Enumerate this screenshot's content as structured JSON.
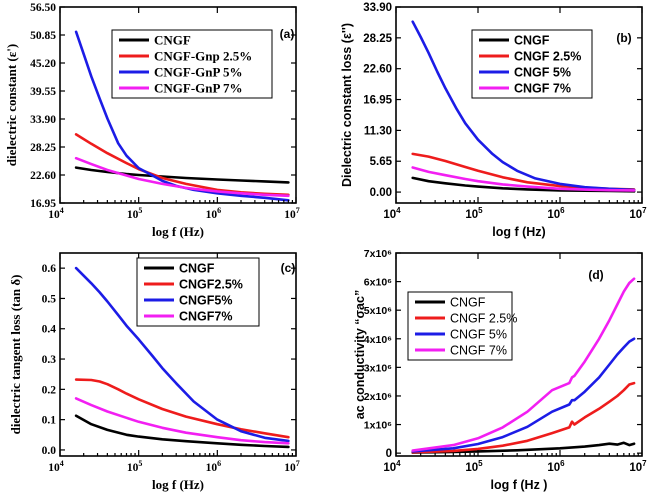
{
  "colors": {
    "black": "#000000",
    "red": "#ee1c1c",
    "blue": "#1c1ce6",
    "magenta": "#f21ff2"
  },
  "chart_data": [
    {
      "type": "line",
      "panel_label": "(a)",
      "xlabel": "log f (Hz)",
      "ylabel": "dielectric constant (ε')",
      "xscale": "log",
      "xlim": [
        10000,
        10000000
      ],
      "ylim": [
        16.95,
        56.5
      ],
      "xticks": [
        10000,
        100000,
        1000000,
        10000000
      ],
      "yticks": [
        16.95,
        22.6,
        28.25,
        33.9,
        39.55,
        45.2,
        50.85,
        56.5
      ],
      "ytick_labels": [
        "16.95",
        "22.60",
        "28.25",
        "33.90",
        "39.55",
        "45.20",
        "50.85",
        "56.50"
      ],
      "legend": [
        "CNGF",
        "CNGF-Gnp 2.5%",
        "CNGF-GnP 5%",
        "CNGF-GnP 7%"
      ],
      "series": [
        {
          "name": "CNGF",
          "color": "#000000",
          "x": [
            16000,
            25000,
            40000,
            70000,
            100000,
            200000,
            400000,
            1000000,
            2000000,
            4000000,
            8000000
          ],
          "y": [
            24.1,
            23.6,
            23.2,
            22.8,
            22.6,
            22.3,
            22.0,
            21.7,
            21.5,
            21.3,
            21.1
          ]
        },
        {
          "name": "CNGF-Gnp 2.5%",
          "color": "#ee1c1c",
          "x": [
            16000,
            25000,
            40000,
            70000,
            100000,
            200000,
            400000,
            1000000,
            2000000,
            4000000,
            8000000
          ],
          "y": [
            30.8,
            28.9,
            27.0,
            25.0,
            23.8,
            22.0,
            20.8,
            19.6,
            19.1,
            18.8,
            18.6
          ]
        },
        {
          "name": "CNGF-GnP 5%",
          "color": "#1c1ce6",
          "x": [
            16000,
            20000,
            25000,
            32000,
            40000,
            55000,
            70000,
            100000,
            150000,
            200000,
            300000,
            500000,
            1000000,
            2000000,
            4000000,
            8000000
          ],
          "y": [
            51.5,
            47.0,
            42.5,
            38.0,
            34.0,
            29.0,
            26.5,
            24.0,
            22.5,
            21.4,
            20.4,
            19.6,
            18.9,
            18.4,
            18.0,
            17.5
          ]
        },
        {
          "name": "CNGF-GnP 7%",
          "color": "#f21ff2",
          "x": [
            16000,
            25000,
            40000,
            70000,
            100000,
            200000,
            400000,
            1000000,
            2000000,
            4000000,
            8000000
          ],
          "y": [
            26.0,
            24.8,
            23.6,
            22.5,
            21.8,
            20.8,
            20.0,
            19.3,
            18.9,
            18.6,
            18.4
          ]
        }
      ]
    },
    {
      "type": "line",
      "panel_label": "(b)",
      "xlabel": "log f (Hz)",
      "ylabel": "Dielectric constant loss  (ε'')",
      "xscale": "log",
      "xlim": [
        10000,
        10000000
      ],
      "ylim": [
        -2.0,
        33.9
      ],
      "xticks": [
        10000,
        100000,
        1000000,
        10000000
      ],
      "yticks": [
        0.0,
        5.65,
        11.3,
        16.95,
        22.6,
        28.25,
        33.9
      ],
      "ytick_labels": [
        "0.00",
        "5.65",
        "11.30",
        "16.95",
        "22.60",
        "28.25",
        "33.90"
      ],
      "legend": [
        "CNGF",
        "CNGF 2.5%",
        "CNGF 5%",
        "CNGF 7%"
      ],
      "series": [
        {
          "name": "CNGF",
          "color": "#000000",
          "x": [
            16000,
            25000,
            40000,
            70000,
            100000,
            200000,
            400000,
            1000000,
            2000000,
            4000000,
            8000000
          ],
          "y": [
            2.6,
            2.0,
            1.6,
            1.2,
            1.0,
            0.7,
            0.5,
            0.3,
            0.25,
            0.2,
            0.15
          ]
        },
        {
          "name": "CNGF 2.5%",
          "color": "#ee1c1c",
          "x": [
            16000,
            25000,
            40000,
            70000,
            100000,
            200000,
            400000,
            1000000,
            2000000,
            4000000,
            8000000
          ],
          "y": [
            7.0,
            6.5,
            5.7,
            4.6,
            3.9,
            2.7,
            1.8,
            1.1,
            0.8,
            0.6,
            0.5
          ]
        },
        {
          "name": "CNGF 5%",
          "color": "#1c1ce6",
          "x": [
            16000,
            20000,
            25000,
            32000,
            40000,
            55000,
            70000,
            100000,
            150000,
            200000,
            300000,
            500000,
            1000000,
            2000000,
            4000000,
            8000000
          ],
          "y": [
            31.2,
            28.4,
            25.5,
            22.0,
            19.0,
            15.2,
            12.6,
            9.6,
            7.0,
            5.5,
            3.9,
            2.5,
            1.5,
            0.9,
            0.6,
            0.4
          ]
        },
        {
          "name": "CNGF 7%",
          "color": "#f21ff2",
          "x": [
            16000,
            25000,
            40000,
            70000,
            100000,
            200000,
            400000,
            1000000,
            2000000,
            4000000,
            8000000
          ],
          "y": [
            4.5,
            3.7,
            3.1,
            2.4,
            2.0,
            1.4,
            1.0,
            0.6,
            0.45,
            0.35,
            0.3
          ]
        }
      ]
    },
    {
      "type": "line",
      "panel_label": "(c)",
      "xlabel": "log f (Hz)",
      "ylabel": "dielectric tangent loss (tan δ)",
      "xscale": "log",
      "xlim": [
        10000,
        10000000
      ],
      "ylim": [
        -0.02,
        0.65
      ],
      "xticks": [
        10000,
        100000,
        1000000,
        10000000
      ],
      "yticks": [
        0.0,
        0.1,
        0.2,
        0.3,
        0.4,
        0.5,
        0.6
      ],
      "ytick_labels": [
        "0.0",
        "0.1",
        "0.2",
        "0.3",
        "0.4",
        "0.5",
        "0.6"
      ],
      "legend": [
        "CNGF",
        "CNGF2.5%",
        "CNGF5%",
        "CNGF7%"
      ],
      "series": [
        {
          "name": "CNGF",
          "color": "#000000",
          "x": [
            16000,
            25000,
            40000,
            70000,
            100000,
            200000,
            400000,
            1000000,
            2000000,
            4000000,
            8000000
          ],
          "y": [
            0.113,
            0.085,
            0.066,
            0.05,
            0.044,
            0.035,
            0.029,
            0.022,
            0.017,
            0.013,
            0.01
          ]
        },
        {
          "name": "CNGF2.5%",
          "color": "#ee1c1c",
          "x": [
            16000,
            25000,
            32000,
            40000,
            55000,
            70000,
            100000,
            200000,
            400000,
            1000000,
            2000000,
            4000000,
            8000000
          ],
          "y": [
            0.232,
            0.231,
            0.226,
            0.217,
            0.2,
            0.186,
            0.167,
            0.135,
            0.11,
            0.085,
            0.068,
            0.055,
            0.042
          ]
        },
        {
          "name": "CNGF5%",
          "color": "#1c1ce6",
          "x": [
            16000,
            20000,
            25000,
            32000,
            40000,
            55000,
            70000,
            100000,
            150000,
            200000,
            300000,
            500000,
            1000000,
            2000000,
            4000000,
            8000000
          ],
          "y": [
            0.6,
            0.575,
            0.55,
            0.52,
            0.49,
            0.445,
            0.41,
            0.365,
            0.31,
            0.27,
            0.22,
            0.16,
            0.1,
            0.062,
            0.04,
            0.03
          ]
        },
        {
          "name": "CNGF7%",
          "color": "#f21ff2",
          "x": [
            16000,
            25000,
            40000,
            70000,
            100000,
            200000,
            400000,
            1000000,
            2000000,
            4000000,
            8000000
          ],
          "y": [
            0.17,
            0.148,
            0.127,
            0.106,
            0.093,
            0.073,
            0.057,
            0.042,
            0.032,
            0.026,
            0.022
          ]
        }
      ]
    },
    {
      "type": "line",
      "panel_label": "(d)",
      "xlabel": "log f (Hz )",
      "ylabel": "ac conductivity “σac”",
      "xscale": "log",
      "xlim": [
        10000,
        10000000
      ],
      "ylim": [
        -100000,
        7000000
      ],
      "xticks": [
        10000,
        100000,
        1000000,
        10000000
      ],
      "yticks": [
        0,
        1000000,
        2000000,
        3000000,
        4000000,
        5000000,
        6000000,
        7000000
      ],
      "ytick_labels": [
        "0",
        "1x10⁶",
        "2x10⁶",
        "3x10⁶",
        "4x10⁶",
        "5x10⁶",
        "6x10⁶",
        "7x10⁶"
      ],
      "legend": [
        "CNGF",
        "CNGF 2.5%",
        "CNGF 5%",
        "CNGF 7%"
      ],
      "series": [
        {
          "name": "CNGF",
          "color": "#000000",
          "x": [
            16000,
            50000,
            100000,
            300000,
            1000000,
            2000000,
            3000000,
            4000000,
            5000000,
            6000000,
            7000000,
            8000000
          ],
          "y": [
            20000,
            40000,
            60000,
            100000,
            170000,
            230000,
            280000,
            330000,
            300000,
            360000,
            280000,
            330000
          ]
        },
        {
          "name": "CNGF 2.5%",
          "color": "#ee1c1c",
          "x": [
            16000,
            50000,
            100000,
            200000,
            400000,
            800000,
            1300000,
            1400000,
            1500000,
            2000000,
            3000000,
            4000000,
            5000000,
            6000000,
            7000000,
            8000000
          ],
          "y": [
            30000,
            80000,
            150000,
            260000,
            430000,
            700000,
            900000,
            1100000,
            1000000,
            1250000,
            1550000,
            1800000,
            2000000,
            2200000,
            2400000,
            2450000
          ]
        },
        {
          "name": "CNGF 5%",
          "color": "#1c1ce6",
          "x": [
            16000,
            50000,
            100000,
            200000,
            400000,
            800000,
            1300000,
            1400000,
            1500000,
            2000000,
            3000000,
            4000000,
            5000000,
            6000000,
            7000000,
            8000000
          ],
          "y": [
            60000,
            170000,
            320000,
            560000,
            920000,
            1450000,
            1700000,
            1850000,
            1850000,
            2150000,
            2650000,
            3100000,
            3450000,
            3700000,
            3900000,
            4000000
          ]
        },
        {
          "name": "CNGF 7%",
          "color": "#f21ff2",
          "x": [
            16000,
            50000,
            100000,
            200000,
            400000,
            800000,
            1300000,
            1400000,
            1500000,
            2000000,
            3000000,
            4000000,
            5000000,
            6000000,
            7000000,
            8000000
          ],
          "y": [
            90000,
            280000,
            520000,
            900000,
            1450000,
            2200000,
            2450000,
            2650000,
            2700000,
            3200000,
            4000000,
            4650000,
            5200000,
            5650000,
            5950000,
            6100000
          ]
        }
      ]
    }
  ]
}
